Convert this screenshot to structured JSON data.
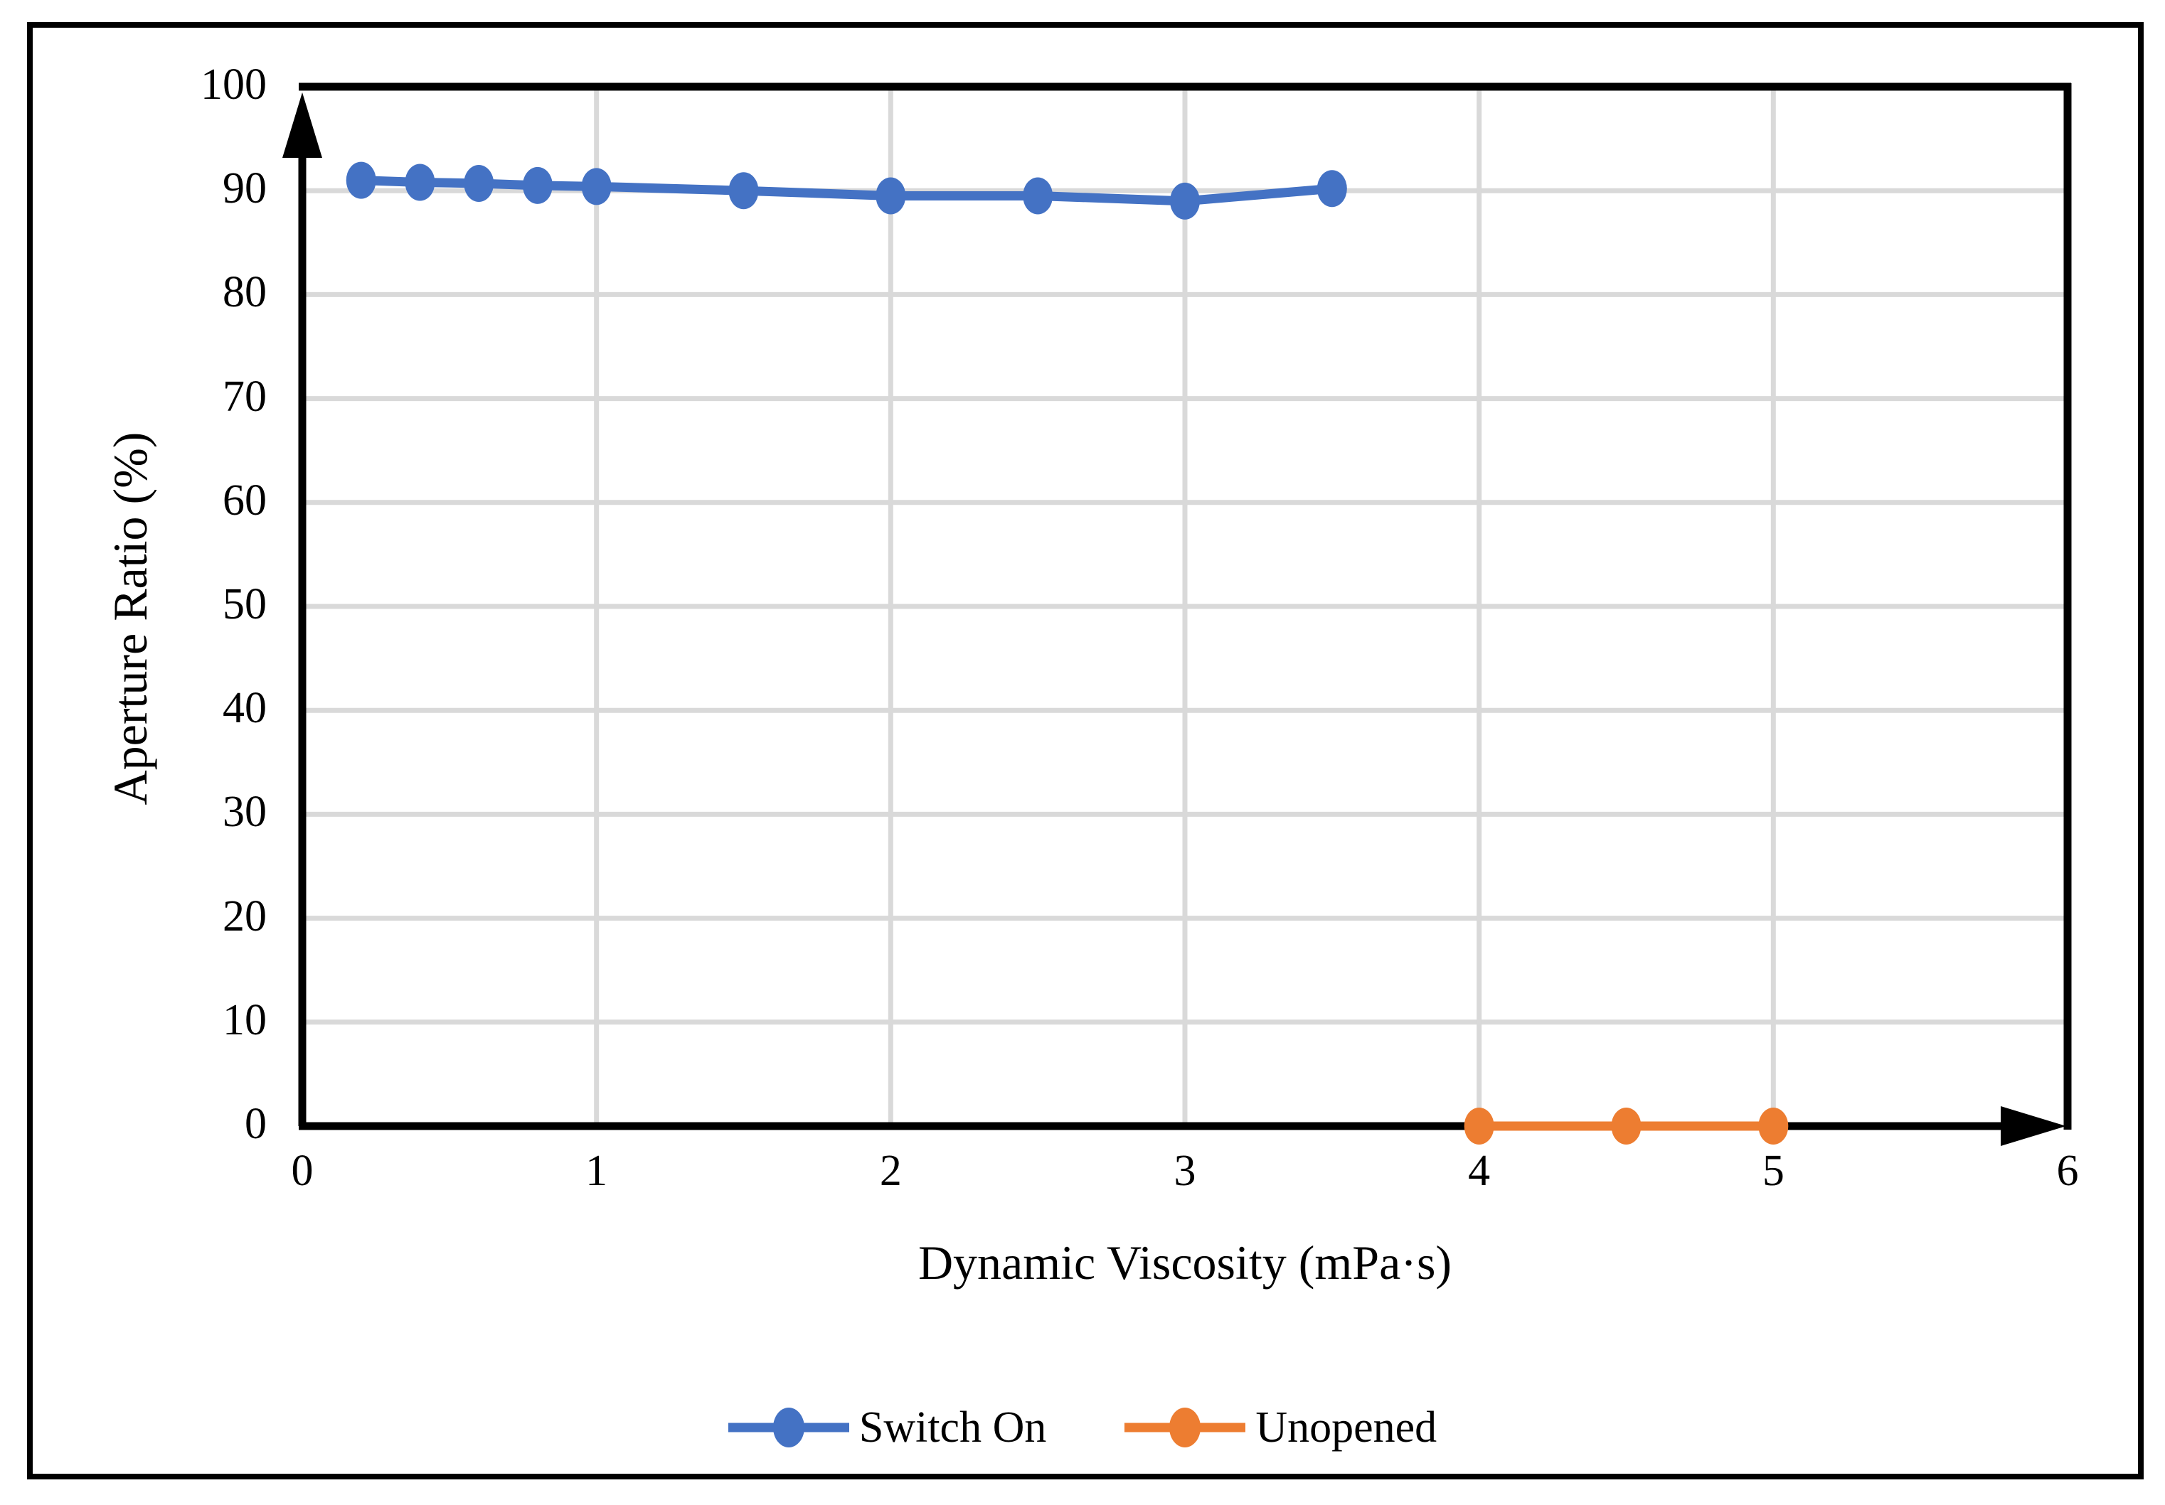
{
  "figure": {
    "background": "#FFFFFF",
    "border_color": "#000000"
  },
  "chart_data": {
    "type": "line",
    "title": "",
    "xlabel": "Dynamic Viscosity (mPa·s)",
    "ylabel": "Aperture Ratio (%)",
    "xlim": [
      0,
      6
    ],
    "ylim": [
      0,
      100
    ],
    "x_ticks": [
      0,
      1,
      2,
      3,
      4,
      5,
      6
    ],
    "y_ticks": [
      0,
      10,
      20,
      30,
      40,
      50,
      60,
      70,
      80,
      90,
      100
    ],
    "grid": true,
    "gridline_color": "#D9D9D9",
    "axis_color": "#000000",
    "legend_position": "bottom",
    "series": [
      {
        "name": "Switch On",
        "color": "#4472C4",
        "x": [
          0.2,
          0.4,
          0.6,
          0.8,
          1.0,
          1.5,
          2.0,
          2.5,
          3.0,
          3.5
        ],
        "y": [
          91.0,
          90.8,
          90.7,
          90.5,
          90.4,
          90.0,
          89.5,
          89.5,
          89.0,
          90.2
        ]
      },
      {
        "name": "Unopened",
        "color": "#ED7D31",
        "x": [
          4.0,
          4.5,
          5.0
        ],
        "y": [
          0,
          0,
          0
        ]
      }
    ]
  }
}
